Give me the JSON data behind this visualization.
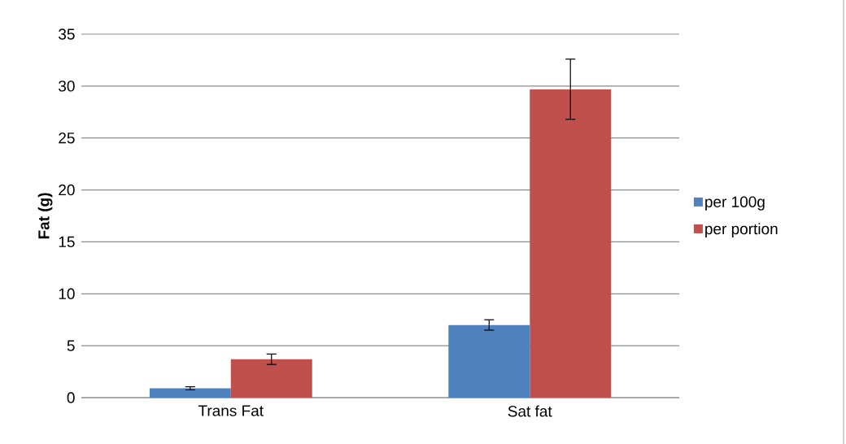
{
  "chart_data": {
    "type": "bar",
    "ylabel": "Fat (g)",
    "categories": [
      "Trans Fat",
      "Sat fat"
    ],
    "series": [
      {
        "name": "per 100g",
        "color": "#4f81bd",
        "values": [
          0.9,
          7.0
        ],
        "errors": [
          0.15,
          0.5
        ]
      },
      {
        "name": "per portion",
        "color": "#c0504d",
        "values": [
          3.7,
          29.7
        ],
        "errors": [
          0.5,
          2.9
        ]
      }
    ],
    "ylim": [
      0,
      35
    ],
    "yticks": [
      0,
      5,
      10,
      15,
      20,
      25,
      30,
      35
    ],
    "grid": "y",
    "legend": "right"
  }
}
